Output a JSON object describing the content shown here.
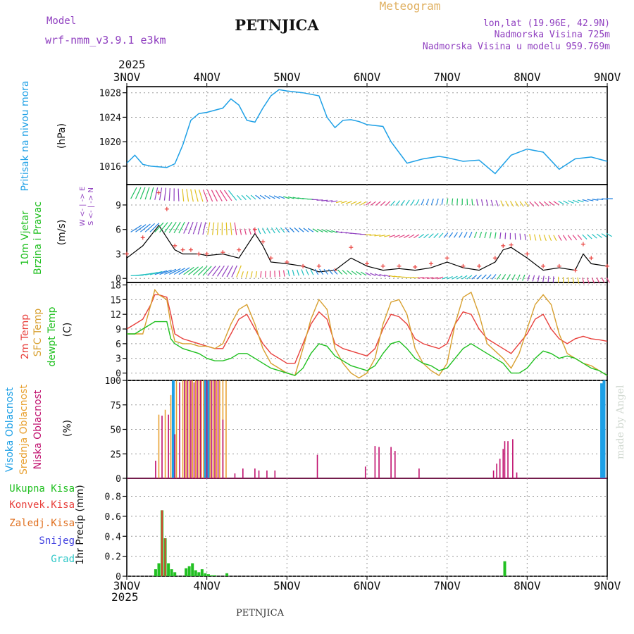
{
  "header": {
    "model_label": "Model",
    "model_name": "wrf-nmm_v3.9.1  e3km",
    "title": "PETNJICA",
    "subtitle": "Meteogram",
    "location": "lon,lat (19.96E, 42.9N)",
    "elevation": "Nadmorska Visina 725m",
    "model_elevation": "Nadmorska Visina u modelu 959.769m",
    "year": "2025",
    "footer": "PETNJICA",
    "watermark": "made by Angel"
  },
  "colors": {
    "pressure": "#1ea0e6",
    "wind_label": "#22c022",
    "temp2m": "#e8403c",
    "sfc": "#d8a030",
    "dew": "#20c020",
    "high_cloud": "#1ea0e6",
    "mid_cloud": "#e8a030",
    "low_cloud": "#c0106e",
    "precip_total": "#22c022",
    "precip_conv": "#e8403c",
    "precip_frz": "#e07020",
    "snow": "#4040e0",
    "grad": "#30c8c8",
    "purple_text": "#9040c0",
    "orange_text": "#e0b060"
  },
  "chart_data": [
    {
      "type": "line",
      "panel": "pressure",
      "title": "Pritisak na nivou mora",
      "ylabel": "(hPa)",
      "x_ticks": [
        "3NOV",
        "4NOV",
        "5NOV",
        "6NOV",
        "7NOV",
        "8NOV",
        "9NOV"
      ],
      "ylim": [
        1013,
        1029
      ],
      "y_ticks": [
        1016,
        1020,
        1024,
        1028
      ],
      "x_days": [
        0,
        0.1,
        0.2,
        0.3,
        0.5,
        0.6,
        0.7,
        0.8,
        0.9,
        1.0,
        1.2,
        1.3,
        1.4,
        1.5,
        1.6,
        1.7,
        1.8,
        1.9,
        2.0,
        2.2,
        2.4,
        2.5,
        2.6,
        2.7,
        2.8,
        2.9,
        3.0,
        3.2,
        3.3,
        3.5,
        3.7,
        3.9,
        4.0,
        4.2,
        4.4,
        4.6,
        4.8,
        5.0,
        5.2,
        5.4,
        5.6,
        5.8,
        6.0
      ],
      "values": [
        1016.5,
        1017.8,
        1016.3,
        1016.0,
        1015.8,
        1016.4,
        1019.5,
        1023.5,
        1024.6,
        1024.8,
        1025.5,
        1027.0,
        1026.0,
        1023.5,
        1023.2,
        1025.5,
        1027.5,
        1028.5,
        1028.3,
        1028.0,
        1027.5,
        1024.0,
        1022.3,
        1023.5,
        1023.6,
        1023.3,
        1022.8,
        1022.5,
        1020.0,
        1016.5,
        1017.2,
        1017.6,
        1017.4,
        1016.8,
        1017.0,
        1014.8,
        1017.8,
        1018.8,
        1018.3,
        1015.5,
        1017.2,
        1017.5,
        1016.8
      ]
    },
    {
      "type": "line",
      "panel": "wind",
      "title_lines": [
        "10m Vjetar",
        "Brzina i Pravac"
      ],
      "ylabel": "(m/s)",
      "compass_label": "W <- | -> E",
      "compass_sub": "S <- | -> N",
      "ylim": [
        -0.5,
        11.5
      ],
      "y_ticks": [
        0,
        3,
        6,
        9
      ],
      "x_days": [
        0,
        0.2,
        0.4,
        0.5,
        0.6,
        0.7,
        0.8,
        0.9,
        1.0,
        1.2,
        1.4,
        1.6,
        1.7,
        1.8,
        2.0,
        2.2,
        2.4,
        2.6,
        2.8,
        3.0,
        3.2,
        3.4,
        3.6,
        3.8,
        4.0,
        4.2,
        4.4,
        4.6,
        4.7,
        4.8,
        5.0,
        5.2,
        5.4,
        5.6,
        5.7,
        5.8,
        6.0
      ],
      "speed": [
        2.5,
        4.0,
        6.5,
        5.0,
        3.5,
        3.0,
        3.0,
        3.0,
        2.8,
        3.0,
        2.5,
        5.5,
        4.0,
        2.0,
        1.8,
        1.5,
        0.8,
        1.0,
        2.5,
        1.5,
        1.0,
        1.2,
        1.0,
        1.3,
        2.0,
        1.3,
        1.0,
        2.0,
        3.5,
        3.8,
        2.5,
        1.0,
        1.3,
        1.0,
        3.0,
        1.8,
        1.5
      ],
      "gust": [
        3.0,
        5.0,
        10.5,
        8.5,
        4.0,
        3.5,
        3.5,
        3.0,
        3.0,
        3.2,
        3.5,
        6.0,
        4.5,
        2.5,
        2.0,
        1.5,
        1.5,
        1.0,
        3.8,
        1.8,
        1.5,
        1.5,
        1.4,
        1.8,
        2.5,
        1.5,
        1.5,
        2.5,
        4.0,
        4.1,
        3.0,
        1.5,
        1.5,
        1.0,
        4.2,
        2.5,
        1.5
      ]
    },
    {
      "type": "line",
      "panel": "temperature",
      "title_lines": [
        "2m Temp",
        "SFC Temp",
        "dewpt Temp"
      ],
      "ylabel": "(C)",
      "ylim": [
        -1.5,
        18.5
      ],
      "y_ticks": [
        0,
        3,
        6,
        9,
        12,
        15,
        18
      ],
      "x_days": [
        0,
        0.1,
        0.2,
        0.3,
        0.35,
        0.4,
        0.5,
        0.55,
        0.6,
        0.7,
        0.8,
        0.9,
        1.0,
        1.1,
        1.2,
        1.3,
        1.4,
        1.5,
        1.6,
        1.7,
        1.8,
        1.9,
        2.0,
        2.1,
        2.2,
        2.3,
        2.4,
        2.5,
        2.6,
        2.7,
        2.8,
        2.9,
        3.0,
        3.1,
        3.2,
        3.3,
        3.4,
        3.5,
        3.6,
        3.7,
        3.8,
        3.9,
        4.0,
        4.1,
        4.2,
        4.3,
        4.4,
        4.5,
        4.6,
        4.7,
        4.8,
        4.9,
        5.0,
        5.1,
        5.2,
        5.3,
        5.4,
        5.5,
        5.6,
        5.7,
        5.8,
        5.9,
        6.0
      ],
      "series": [
        {
          "name": "2m Temp",
          "values": [
            9,
            10,
            11,
            14,
            16,
            16,
            15.5,
            12,
            8,
            7,
            6.5,
            6,
            5.5,
            5,
            5,
            8,
            11,
            12,
            9,
            6,
            4,
            3,
            2,
            2,
            6,
            10,
            12.5,
            11,
            6,
            5,
            4.5,
            4,
            3.5,
            5,
            9,
            12,
            11.5,
            10,
            7,
            6,
            5.5,
            5,
            6,
            10,
            12.5,
            12,
            9,
            7,
            6,
            5,
            4,
            6,
            8,
            11,
            12,
            9,
            7,
            6,
            7,
            7.5,
            7,
            6.8,
            6.5
          ]
        },
        {
          "name": "SFC Temp",
          "values": [
            8,
            8,
            8,
            14,
            17,
            16,
            15,
            10,
            6.5,
            6,
            6,
            5.5,
            5.5,
            5,
            6,
            10,
            13,
            14,
            10,
            5,
            2,
            1,
            0,
            -0.5,
            5,
            11,
            15,
            13,
            5,
            2,
            0,
            -1,
            0,
            3,
            10,
            14.5,
            15,
            12,
            5,
            2,
            0.5,
            -0.5,
            2,
            10,
            15.5,
            16.5,
            12,
            6,
            4.5,
            3,
            1,
            4,
            9,
            14,
            16,
            14,
            8,
            4,
            3,
            2,
            1.5,
            0.5,
            -0.5
          ]
        },
        {
          "name": "dewpt Temp",
          "values": [
            8,
            8,
            9,
            10,
            10.5,
            10.5,
            10.5,
            7,
            6,
            5,
            4.5,
            4,
            3,
            2.5,
            2.5,
            3,
            4,
            4,
            3,
            2,
            1,
            0.5,
            0,
            -0.5,
            1,
            4,
            6,
            5.5,
            3.5,
            2.5,
            1.5,
            1,
            0.5,
            1.5,
            4,
            6,
            6.5,
            5,
            3,
            2,
            1.5,
            0.5,
            1,
            3,
            5,
            6,
            5,
            4,
            3,
            2,
            0,
            0,
            1,
            3,
            4.5,
            4,
            3,
            3.5,
            3,
            2,
            1,
            0.5,
            -0.5
          ]
        }
      ]
    },
    {
      "type": "bar",
      "panel": "clouds",
      "title_lines": [
        "Visoka Oblacnost",
        "Srednja Oblacnost",
        "Niska Oblacnost"
      ],
      "ylabel": "(%)",
      "ylim": [
        0,
        100
      ],
      "y_ticks": [
        0,
        25,
        50,
        75,
        100
      ],
      "series": [
        {
          "name": "Visoka Oblacnost",
          "x": [
            0.58,
            0.98,
            1.02,
            5.93,
            5.96
          ],
          "values": [
            100,
            100,
            100,
            97,
            100
          ]
        },
        {
          "name": "Srednja Oblacnost",
          "x": [
            0.4,
            0.48,
            0.55,
            0.62,
            0.7,
            0.74,
            0.78,
            0.82,
            0.86,
            0.9,
            0.93,
            0.96,
            1.0,
            1.04,
            1.08,
            1.12,
            1.16,
            1.2,
            1.24
          ],
          "values": [
            65,
            70,
            85,
            100,
            100,
            100,
            100,
            100,
            100,
            100,
            100,
            100,
            100,
            100,
            100,
            100,
            100,
            100,
            100
          ]
        },
        {
          "name": "Niska Oblacnost",
          "x": [
            0.36,
            0.44,
            0.52,
            0.6,
            0.66,
            0.72,
            0.76,
            0.8,
            0.84,
            0.88,
            0.92,
            1.0,
            1.06,
            1.1,
            1.14,
            1.2,
            1.35,
            1.45,
            1.6,
            1.65,
            1.75,
            1.85,
            2.38,
            2.98,
            3.1,
            3.15,
            3.3,
            3.35,
            3.65,
            4.58,
            4.62,
            4.66,
            4.7,
            4.72,
            4.76,
            4.82,
            4.87
          ],
          "values": [
            18,
            64,
            65,
            45,
            98,
            100,
            100,
            100,
            98,
            100,
            100,
            100,
            100,
            100,
            100,
            60,
            5,
            10,
            10,
            8,
            8,
            8,
            24,
            12,
            33,
            32,
            32,
            28,
            10,
            8,
            15,
            20,
            30,
            38,
            38,
            40,
            6
          ]
        }
      ]
    },
    {
      "type": "bar",
      "panel": "precipitation",
      "title_lines": [
        "Ukupna Kisa",
        "Konvek.Kisa",
        "Zaledj.Kisa",
        "Snijeg",
        "Grad"
      ],
      "ylabel": "1hr Precip (mm)",
      "ylim": [
        0,
        0.98
      ],
      "y_ticks": [
        0,
        0.2,
        0.4,
        0.6,
        0.8
      ],
      "series": [
        {
          "name": "Ukupna Kisa",
          "x": [
            0.36,
            0.4,
            0.44,
            0.48,
            0.52,
            0.56,
            0.6,
            0.74,
            0.78,
            0.82,
            0.86,
            0.9,
            0.94,
            0.98,
            1.02,
            1.06,
            1.1,
            1.25,
            4.72
          ],
          "values": [
            0.07,
            0.13,
            0.66,
            0.38,
            0.13,
            0.07,
            0.04,
            0.08,
            0.1,
            0.13,
            0.06,
            0.04,
            0.07,
            0.03,
            0.02,
            0.01,
            0.01,
            0.03,
            0.15
          ]
        },
        {
          "name": "Konvek.Kisa",
          "x": [
            0.44,
            0.48
          ],
          "values": [
            0.66,
            0.38
          ]
        },
        {
          "name": "Zaledj.Kisa",
          "x": [],
          "values": []
        },
        {
          "name": "Snijeg",
          "x": [],
          "values": []
        },
        {
          "name": "Grad",
          "x": [],
          "values": []
        }
      ]
    }
  ]
}
